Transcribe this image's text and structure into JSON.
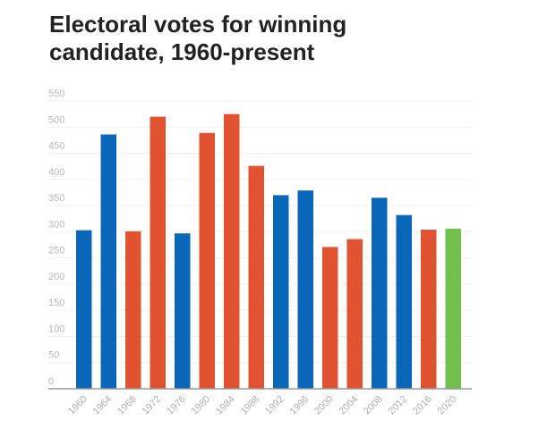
{
  "chart_data": {
    "type": "bar",
    "title": "Electoral votes for winning candidate, 1960-present",
    "xlabel": "",
    "ylabel": "",
    "ylim": [
      0,
      550
    ],
    "yticks": [
      0,
      50,
      100,
      150,
      200,
      250,
      300,
      350,
      400,
      450,
      500,
      550
    ],
    "grid": true,
    "categories": [
      "1960",
      "1964",
      "1968",
      "1972",
      "1976",
      "1980",
      "1984",
      "1988",
      "1992",
      "1996",
      "2000",
      "2004",
      "2008",
      "2012",
      "2016",
      "2020"
    ],
    "values": [
      303,
      486,
      301,
      520,
      297,
      489,
      525,
      426,
      370,
      379,
      271,
      286,
      365,
      332,
      304,
      306
    ],
    "bar_colors": [
      "#0a66b8",
      "#0a66b8",
      "#e05230",
      "#e05230",
      "#0a66b8",
      "#e05230",
      "#e05230",
      "#e05230",
      "#0a66b8",
      "#0a66b8",
      "#e05230",
      "#e05230",
      "#0a66b8",
      "#0a66b8",
      "#e05230",
      "#72bf4c"
    ]
  }
}
